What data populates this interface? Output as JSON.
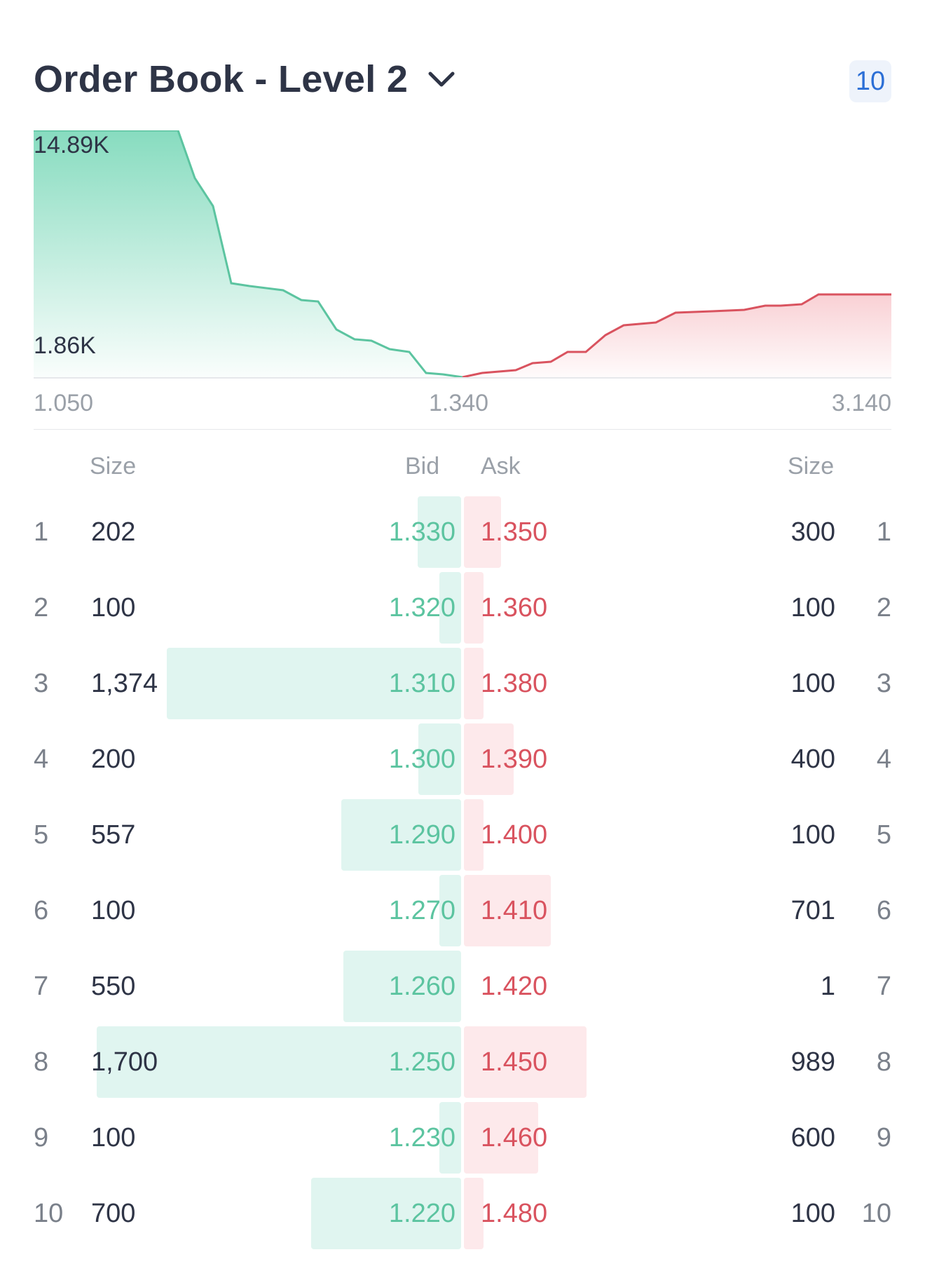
{
  "header": {
    "title": "Order Book - Level 2",
    "depth_badge": "10"
  },
  "chart": {
    "y_labels": [
      "14.89K",
      "1.86K"
    ],
    "x_labels": [
      "1.050",
      "1.340",
      "3.140"
    ]
  },
  "columns": {
    "bid_size": "Size",
    "bid": "Bid",
    "ask": "Ask",
    "ask_size": "Size"
  },
  "rows": [
    {
      "rank": "1",
      "bid_size": "202",
      "bid": "1.330",
      "ask": "1.350",
      "ask_size": "300",
      "bid_frac": 0.119,
      "ask_frac": 0.176
    },
    {
      "rank": "2",
      "bid_size": "100",
      "bid": "1.320",
      "ask": "1.360",
      "ask_size": "100",
      "bid_frac": 0.059,
      "ask_frac": 0.059
    },
    {
      "rank": "3",
      "bid_size": "1,374",
      "bid": "1.310",
      "ask": "1.380",
      "ask_size": "100",
      "bid_frac": 0.808,
      "ask_frac": 0.059
    },
    {
      "rank": "4",
      "bid_size": "200",
      "bid": "1.300",
      "ask": "1.390",
      "ask_size": "400",
      "bid_frac": 0.118,
      "ask_frac": 0.235
    },
    {
      "rank": "5",
      "bid_size": "557",
      "bid": "1.290",
      "ask": "1.400",
      "ask_size": "100",
      "bid_frac": 0.328,
      "ask_frac": 0.059
    },
    {
      "rank": "6",
      "bid_size": "100",
      "bid": "1.270",
      "ask": "1.410",
      "ask_size": "701",
      "bid_frac": 0.059,
      "ask_frac": 0.412
    },
    {
      "rank": "7",
      "bid_size": "550",
      "bid": "1.260",
      "ask": "1.420",
      "ask_size": "1",
      "bid_frac": 0.324,
      "ask_frac": 0.0
    },
    {
      "rank": "8",
      "bid_size": "1,700",
      "bid": "1.250",
      "ask": "1.450",
      "ask_size": "989",
      "bid_frac": 1.0,
      "ask_frac": 0.582
    },
    {
      "rank": "9",
      "bid_size": "100",
      "bid": "1.230",
      "ask": "1.460",
      "ask_size": "600",
      "bid_frac": 0.059,
      "ask_frac": 0.353
    },
    {
      "rank": "10",
      "bid_size": "700",
      "bid": "1.220",
      "ask": "1.480",
      "ask_size": "100",
      "bid_frac": 0.412,
      "ask_frac": 0.059
    }
  ],
  "colors": {
    "bid": "#5cc4a0",
    "ask": "#d9535f",
    "bid_bar": "#e0f5f0",
    "ask_bar": "#fde9eb",
    "accent": "#2c6fd6"
  }
}
